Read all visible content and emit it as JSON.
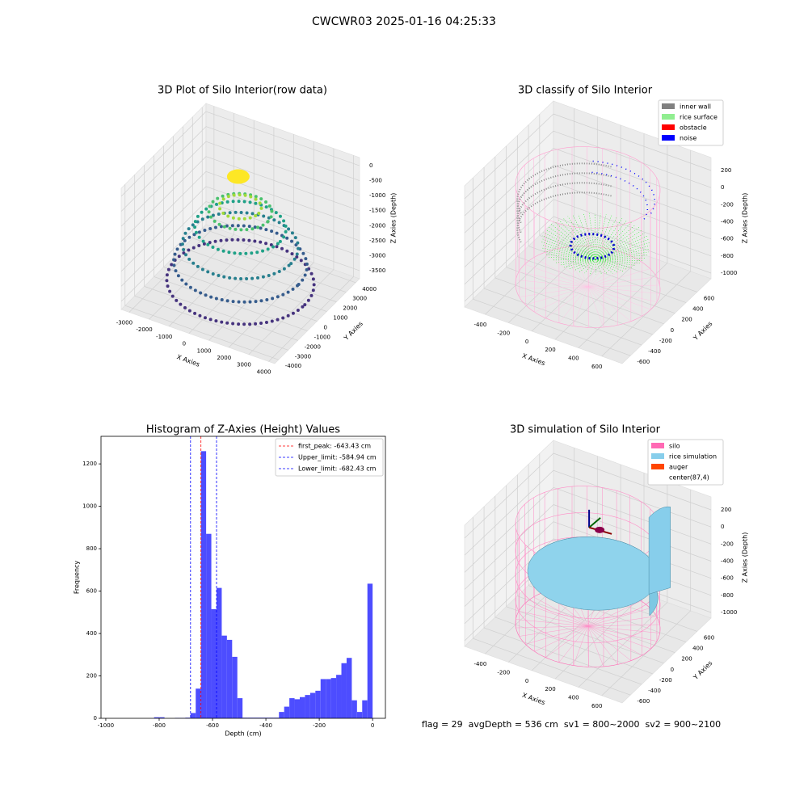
{
  "title": "CWCWR03 2025-01-16 04:25:33",
  "footer": "flag = 29  avgDepth = 536 cm  sv1 = 800~2000  sv2 = 900~2100",
  "chart_data": [
    {
      "type": "scatter3d",
      "title": "3D Plot of Silo Interior(row data)",
      "xlabel": "X Axies",
      "ylabel": "Y Axies",
      "zlabel": "Z Axies (Depth)",
      "xlim": [
        -3400,
        4300
      ],
      "ylim": [
        -4400,
        4400
      ],
      "zlim": [
        -3770,
        270
      ],
      "xticks": [
        -3000,
        -2000,
        -1000,
        0,
        1000,
        2000,
        3000,
        4000
      ],
      "yticks": [
        -4000,
        -3000,
        -2000,
        -1000,
        0,
        1000,
        2000,
        3000,
        4000
      ],
      "zticks": [
        -3500,
        -3000,
        -2500,
        -2000,
        -1500,
        -1000,
        -500,
        0
      ]
    },
    {
      "type": "classify3d",
      "title": "3D classify of Silo Interior",
      "xlabel": "X Axies",
      "ylabel": "Y Axies",
      "zlabel": "Z Axies (Depth)",
      "xlim": [
        -576,
        775
      ],
      "ylim": [
        -750,
        850
      ],
      "zlim": [
        -1066,
        351
      ],
      "xticks": [
        -400,
        -200,
        0,
        200,
        400,
        600
      ],
      "yticks": [
        -600,
        -400,
        -200,
        0,
        200,
        400,
        600
      ],
      "zticks": [
        -1000,
        -800,
        -600,
        -400,
        -200,
        0,
        200
      ],
      "legend": [
        {
          "name": "inner wall",
          "color": "#808080"
        },
        {
          "name": "rice surface",
          "color": "#90ee90"
        },
        {
          "name": "obstacle",
          "color": "#ff0000"
        },
        {
          "name": "noise",
          "color": "#0000ff"
        }
      ]
    },
    {
      "type": "histogram",
      "title": "Histogram of Z-Axies (Height) Values",
      "xlabel": "Depth (cm)",
      "ylabel": "Frequency",
      "color": "#4d4dff",
      "bins": [
        -819,
        -799.5,
        -780,
        -760.5,
        -741,
        -721.5,
        -702,
        -682.5,
        -663,
        -643.5,
        -624,
        -604.5,
        -585,
        -565.5,
        -546,
        -526.5,
        -507,
        -487.5,
        -468,
        -448.5,
        -429,
        -409.5,
        -390,
        -370.5,
        -351,
        -331.5,
        -312,
        -292.5,
        -273,
        -253.5,
        -234,
        -214.5,
        -195,
        -175.5,
        -156,
        -136.5,
        -117,
        -97.5,
        -78,
        -58.5,
        -39,
        -19.5,
        0
      ],
      "counts": [
        5,
        5,
        0,
        0,
        2,
        2,
        3,
        25,
        140,
        1260,
        870,
        515,
        615,
        390,
        370,
        290,
        95,
        3,
        3,
        3,
        3,
        3,
        3,
        3,
        30,
        55,
        95,
        90,
        100,
        110,
        120,
        130,
        185,
        185,
        190,
        205,
        260,
        285,
        85,
        30,
        85,
        635
      ],
      "xlim": [
        -1018,
        48
      ],
      "ylim": [
        0,
        1330
      ],
      "xticks": [
        -1000,
        -800,
        -600,
        -400,
        -200,
        0
      ],
      "yticks": [
        0,
        200,
        400,
        600,
        800,
        1000,
        1200
      ],
      "lines": [
        {
          "name": "first_peak: -643.43 cm",
          "value": -643.43,
          "color": "#ff0000"
        },
        {
          "name": "Upper_limit: -584.94 cm",
          "value": -584.94,
          "color": "#0000ff"
        },
        {
          "name": "Lower_limit: -682.43 cm",
          "value": -682.43,
          "color": "#0000ff"
        }
      ]
    },
    {
      "type": "simulation3d",
      "title": "3D simulation of Silo Interior",
      "xlabel": "X Axies",
      "ylabel": "Y Axies",
      "zlabel": "Z Axies (Depth)",
      "xlim": [
        -576,
        775
      ],
      "ylim": [
        -750,
        850
      ],
      "zlim": [
        -1066,
        351
      ],
      "xticks": [
        -400,
        -200,
        0,
        200,
        400,
        600
      ],
      "yticks": [
        -600,
        -400,
        -200,
        0,
        200,
        400,
        600
      ],
      "zticks": [
        -1000,
        -800,
        -600,
        -400,
        -200,
        0,
        200
      ],
      "legend": [
        {
          "name": "silo",
          "color": "#ff69b4"
        },
        {
          "name": "rice simulation",
          "color": "#87ceeb"
        },
        {
          "name": "auger",
          "color": "#ff4500"
        },
        {
          "name": "center(87,4)",
          "color": "none"
        }
      ]
    }
  ]
}
